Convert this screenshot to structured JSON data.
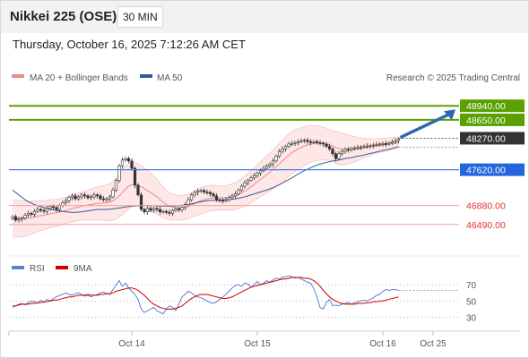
{
  "header": {
    "title": "Nikkei 225 (OSE)",
    "timeframe": "30 MIN"
  },
  "datetime": "Thursday, October 16, 2025 7:12:26 AM CET",
  "legend": {
    "ma20": "MA 20 + Bollinger Bands",
    "ma50": "MA 50",
    "copyright": "Research © 2025 Trading Central",
    "rsi": "RSI",
    "ma9": "9MA"
  },
  "colors": {
    "up": "#5aa000",
    "down": "#e05c5c",
    "pivot": "#333333",
    "support_line": "#4a7ee8",
    "candle": "#333333",
    "band_fill": "#fde3e3",
    "ma20": "#f08a8a",
    "ma50": "#2e5e9a",
    "rsi": "#5b7fd6",
    "ma9": "#cc0000",
    "arrow": "#2f67b0"
  },
  "chart_data": [
    {
      "type": "candlestick",
      "name": "price",
      "title": "Nikkei 225 (OSE)",
      "ylim": [
        45950,
        49350
      ],
      "x_ticks": [
        {
          "label": "Oct 14",
          "index": 38
        },
        {
          "label": "Oct 15",
          "index": 78
        },
        {
          "label": "Oct 16",
          "index": 118
        },
        {
          "label": "Oct 25",
          "index": 134
        }
      ],
      "levels": [
        {
          "value": 48940,
          "label": "48940.00",
          "kind": "up"
        },
        {
          "value": 48650,
          "label": "48650.00",
          "kind": "up"
        },
        {
          "value": 48270,
          "label": "48270.00",
          "kind": "pivot"
        },
        {
          "value": 47620,
          "label": "47620.00",
          "kind": "support_line"
        },
        {
          "value": 46880,
          "label": "46880.00",
          "kind": "down"
        },
        {
          "value": 46490,
          "label": "46490.00",
          "kind": "down"
        }
      ],
      "close": [
        46650,
        46580,
        46600,
        46620,
        46680,
        46720,
        46700,
        46760,
        46800,
        46780,
        46760,
        46820,
        46860,
        46840,
        46800,
        46880,
        46940,
        46980,
        47050,
        47080,
        47020,
        47060,
        47100,
        47080,
        47040,
        47060,
        47100,
        47080,
        47020,
        47000,
        47020,
        47060,
        47200,
        47400,
        47700,
        47820,
        47850,
        47800,
        47650,
        47300,
        47100,
        46800,
        46750,
        46820,
        46780,
        46820,
        46800,
        46750,
        46760,
        46740,
        46720,
        46780,
        46810,
        46790,
        46840,
        46900,
        47000,
        47100,
        47150,
        47180,
        47190,
        47160,
        47150,
        47120,
        47080,
        47000,
        46990,
        46980,
        47000,
        47050,
        47080,
        47120,
        47200,
        47280,
        47350,
        47400,
        47450,
        47500,
        47550,
        47600,
        47650,
        47700,
        47730,
        47800,
        47900,
        48000,
        48050,
        48100,
        48150,
        48160,
        48180,
        48200,
        48210,
        48230,
        48200,
        48180,
        48200,
        48180,
        48170,
        48150,
        48100,
        48050,
        47950,
        47850,
        47950,
        48000,
        48040,
        48030,
        48060,
        48070,
        48080,
        48090,
        48100,
        48110,
        48120,
        48130,
        48140,
        48150,
        48160,
        48150,
        48170,
        48200,
        48220,
        48250
      ],
      "ma20": [
        46620,
        46610,
        46605,
        46605,
        46610,
        46620,
        46630,
        46645,
        46660,
        46670,
        46680,
        46695,
        46710,
        46720,
        46730,
        46745,
        46760,
        46780,
        46800,
        46820,
        46835,
        46850,
        46865,
        46880,
        46890,
        46900,
        46915,
        46925,
        46930,
        46935,
        46940,
        46950,
        46980,
        47020,
        47080,
        47150,
        47220,
        47280,
        47310,
        47320,
        47300,
        47270,
        47230,
        47190,
        47150,
        47110,
        47060,
        47000,
        46950,
        46900,
        46870,
        46850,
        46840,
        46830,
        46830,
        46840,
        46860,
        46890,
        46920,
        46950,
        46980,
        47000,
        47020,
        47030,
        47040,
        47040,
        47040,
        47040,
        47040,
        47050,
        47060,
        47080,
        47110,
        47140,
        47180,
        47220,
        47270,
        47320,
        47370,
        47420,
        47470,
        47520,
        47570,
        47620,
        47680,
        47740,
        47800,
        47860,
        47920,
        47970,
        48010,
        48050,
        48080,
        48110,
        48130,
        48150,
        48160,
        48170,
        48170,
        48160,
        48150,
        48130,
        48110,
        48080,
        48060,
        48050,
        48040,
        48040,
        48040,
        48040,
        48050,
        48060,
        48070,
        48080,
        48090,
        48100,
        48110,
        48120,
        48130,
        48140,
        48150,
        48160,
        48170,
        48185
      ],
      "ma50": [
        47200,
        47150,
        47100,
        47050,
        47000,
        46960,
        46930,
        46900,
        46880,
        46860,
        46840,
        46820,
        46800,
        46790,
        46780,
        46770,
        46760,
        46750,
        46745,
        46740,
        46740,
        46745,
        46750,
        46760,
        46770,
        46780,
        46790,
        46800,
        46800,
        46800,
        46800,
        46805,
        46810,
        46820,
        46830,
        46840,
        46850,
        46860,
        46870,
        46875,
        46880,
        46880,
        46880,
        46880,
        46880,
        46880,
        46875,
        46870,
        46870,
        46870,
        46870,
        46870,
        46875,
        46880,
        46885,
        46890,
        46900,
        46915,
        46930,
        46945,
        46960,
        46970,
        46980,
        46985,
        46990,
        46990,
        46990,
        46995,
        47000,
        47005,
        47010,
        47020,
        47030,
        47045,
        47060,
        47080,
        47100,
        47120,
        47140,
        47160,
        47180,
        47200,
        47225,
        47250,
        47280,
        47310,
        47345,
        47380,
        47415,
        47450,
        47490,
        47530,
        47565,
        47600,
        47630,
        47660,
        47690,
        47715,
        47735,
        47755,
        47770,
        47785,
        47800,
        47810,
        47820,
        47835,
        47850,
        47860,
        47870,
        47885,
        47900,
        47910,
        47925,
        47940,
        47955,
        47970,
        47985,
        48000,
        48015,
        48030,
        48045,
        48060,
        48080,
        48100
      ],
      "bb_width": [
        380,
        380,
        380,
        370,
        360,
        350,
        340,
        330,
        320,
        310,
        300,
        295,
        290,
        285,
        280,
        275,
        270,
        270,
        270,
        275,
        280,
        285,
        290,
        300,
        310,
        320,
        330,
        340,
        350,
        360,
        370,
        380,
        400,
        420,
        440,
        460,
        470,
        470,
        460,
        450,
        440,
        430,
        420,
        410,
        400,
        380,
        360,
        340,
        320,
        300,
        280,
        270,
        260,
        255,
        250,
        250,
        250,
        255,
        260,
        265,
        270,
        270,
        270,
        265,
        260,
        255,
        250,
        250,
        255,
        260,
        270,
        280,
        290,
        300,
        310,
        320,
        330,
        340,
        350,
        360,
        370,
        380,
        390,
        400,
        410,
        420,
        430,
        440,
        440,
        440,
        430,
        420,
        410,
        400,
        390,
        380,
        370,
        360,
        350,
        340,
        330,
        320,
        320,
        330,
        340,
        330,
        320,
        300,
        280,
        260,
        240,
        220,
        200,
        185,
        170,
        160,
        150,
        145,
        140,
        135,
        130,
        125,
        120,
        115
      ]
    },
    {
      "type": "line",
      "name": "rsi",
      "ylim": [
        15,
        90
      ],
      "y_ticks": [
        70,
        50,
        30
      ],
      "series": [
        {
          "name": "RSI",
          "values": [
            42,
            44,
            46,
            47,
            45,
            48,
            50,
            49,
            47,
            51,
            48,
            52,
            50,
            53,
            55,
            57,
            58,
            60,
            58,
            57,
            59,
            60,
            58,
            56,
            57,
            55,
            57,
            58,
            60,
            61,
            59,
            58,
            64,
            70,
            75,
            68,
            72,
            66,
            62,
            58,
            52,
            40,
            36,
            38,
            40,
            42,
            38,
            36,
            34,
            40,
            44,
            42,
            38,
            46,
            55,
            58,
            62,
            60,
            57,
            55,
            54,
            52,
            50,
            48,
            47,
            49,
            52,
            55,
            58,
            62,
            66,
            69,
            70,
            68,
            72,
            71,
            67,
            70,
            74,
            70,
            72,
            75,
            73,
            76,
            78,
            77,
            79,
            80,
            81,
            80,
            78,
            79,
            77,
            75,
            73,
            72,
            65,
            55,
            42,
            40,
            48,
            52,
            44,
            45,
            44,
            46,
            47,
            48,
            46,
            48,
            49,
            50,
            51,
            50,
            52,
            54,
            57,
            58,
            62,
            64,
            63,
            64,
            64,
            63
          ]
        },
        {
          "name": "9MA",
          "values": [
            44,
            44,
            45,
            46,
            46,
            46,
            47,
            47,
            48,
            48,
            49,
            49,
            50,
            51,
            51,
            52,
            53,
            54,
            55,
            55,
            56,
            57,
            57,
            57,
            58,
            57,
            57,
            57,
            58,
            58,
            59,
            59,
            60,
            62,
            63,
            64,
            65,
            66,
            66,
            65,
            63,
            60,
            57,
            53,
            49,
            46,
            44,
            42,
            41,
            40,
            40,
            40,
            41,
            42,
            44,
            47,
            50,
            53,
            55,
            57,
            58,
            58,
            58,
            57,
            56,
            55,
            54,
            53,
            53,
            54,
            55,
            57,
            59,
            61,
            63,
            65,
            67,
            68,
            69,
            70,
            71,
            72,
            73,
            74,
            75,
            76,
            77,
            77,
            78,
            79,
            79,
            79,
            79,
            78,
            78,
            77,
            75,
            72,
            68,
            63,
            59,
            55,
            52,
            50,
            48,
            47,
            46,
            46,
            46,
            46,
            47,
            47,
            47,
            48,
            48,
            49,
            49,
            50,
            50,
            51,
            52,
            53,
            54,
            55
          ]
        }
      ]
    }
  ],
  "axis": {
    "rsi_ticks": [
      "70",
      "50",
      "30"
    ]
  }
}
